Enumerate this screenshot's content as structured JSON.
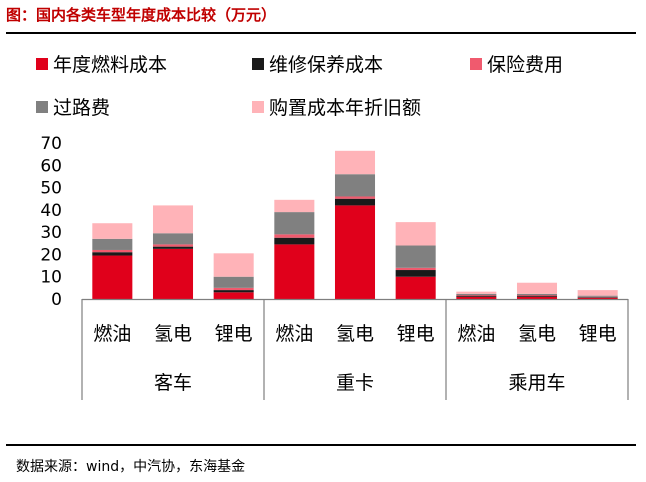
{
  "title": "图：国内各类车型年度成本比较（万元）",
  "source": "数据来源：wind，中汽协，东海基金",
  "colors": {
    "fuel": "#e0001b",
    "maintenance": "#1a1a1a",
    "insurance": "#f05a6e",
    "toll": "#808080",
    "depreciation": "#ffb3b8"
  },
  "chart_data": {
    "type": "bar",
    "stacked": true,
    "title": "国内各类车型年度成本比较（万元）",
    "ylim": [
      0,
      70
    ],
    "yticks": [
      0,
      10,
      20,
      30,
      40,
      50,
      60,
      70
    ],
    "groups": [
      {
        "name": "客车",
        "categories": [
          "燃油",
          "氢电",
          "锂电"
        ]
      },
      {
        "name": "重卡",
        "categories": [
          "燃油",
          "氢电",
          "锂电"
        ]
      },
      {
        "name": "乘用车",
        "categories": [
          "燃油",
          "氢电",
          "锂电"
        ]
      }
    ],
    "series": [
      {
        "name": "年度燃料成本",
        "key": "fuel",
        "values": [
          19.5,
          22.5,
          3.0,
          24.5,
          42.0,
          10.0,
          1.0,
          1.0,
          0.5
        ]
      },
      {
        "name": "维修保养成本",
        "key": "maintenance",
        "values": [
          1.5,
          1.0,
          1.0,
          3.0,
          3.0,
          3.0,
          0.5,
          0.5,
          0.3
        ]
      },
      {
        "name": "保险费用",
        "key": "insurance",
        "values": [
          1.0,
          1.0,
          1.0,
          1.5,
          1.0,
          1.0,
          0.3,
          0.3,
          0.2
        ]
      },
      {
        "name": "过路费",
        "key": "toll",
        "values": [
          5.0,
          5.0,
          5.0,
          10.0,
          10.0,
          10.0,
          0.5,
          0.5,
          0.5
        ]
      },
      {
        "name": "购置成本年折旧额",
        "key": "depreciation",
        "values": [
          7.0,
          12.5,
          10.5,
          5.5,
          10.5,
          10.5,
          1.0,
          5.0,
          2.5
        ]
      }
    ]
  }
}
